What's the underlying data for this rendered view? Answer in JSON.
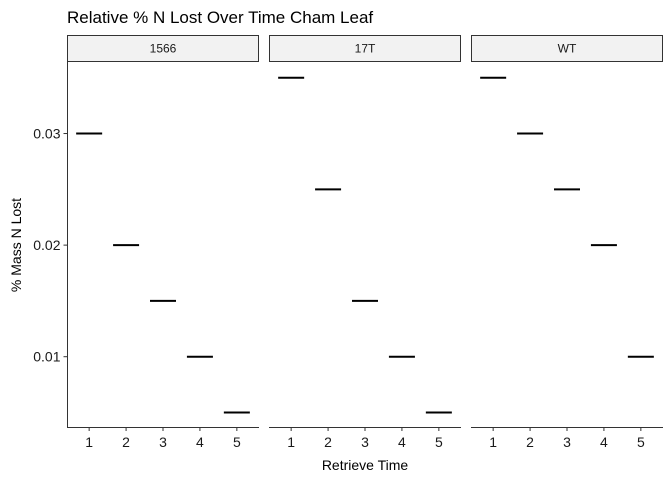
{
  "chart_data": {
    "type": "errorbar",
    "title": "Relative % N Lost Over Time Cham Leaf",
    "xlabel": "Retrieve Time",
    "ylabel": "% Mass N Lost",
    "x_ticks": [
      "1",
      "2",
      "3",
      "4",
      "5"
    ],
    "y_ticks": [
      0.01,
      0.02,
      0.03
    ],
    "y_tick_labels": [
      "0.01",
      "0.02",
      "0.03"
    ],
    "ylim": [
      0.0037,
      0.0365
    ],
    "facets": [
      {
        "name": "1566",
        "x": [
          1,
          2,
          3,
          4,
          5
        ],
        "values": [
          0.03,
          0.02,
          0.015,
          0.01,
          0.005
        ]
      },
      {
        "name": "17T",
        "x": [
          1,
          2,
          3,
          4,
          5
        ],
        "values": [
          0.035,
          0.025,
          0.015,
          0.01,
          0.005
        ]
      },
      {
        "name": "WT",
        "x": [
          1,
          2,
          3,
          4,
          5
        ],
        "values": [
          0.035,
          0.03,
          0.025,
          0.02,
          0.01
        ]
      }
    ],
    "grid": false,
    "colors": {
      "mark": "#000000",
      "strip_fill": "#f2f2f2",
      "strip_border": "#333333",
      "axis": "#333333"
    }
  }
}
